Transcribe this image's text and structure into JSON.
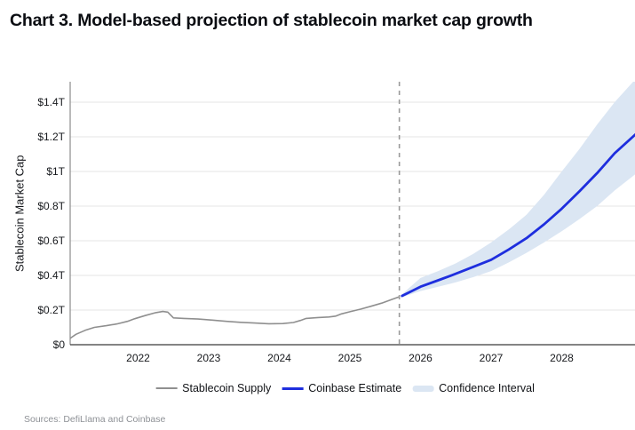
{
  "page": {
    "title": "Chart 3. Model-based projection of stablecoin market cap growth",
    "sources": "Sources: DefiLlama and Coinbase"
  },
  "chart_data": {
    "type": "line",
    "title": "Chart 3. Model-based projection of stablecoin market cap growth",
    "ylabel": "Stablecoin Market Cap",
    "xlabel": "",
    "x_ticks": [
      "2022",
      "2023",
      "2024",
      "2025",
      "2026",
      "2027",
      "2028"
    ],
    "x_tick_values": [
      2022,
      2023,
      2024,
      2025,
      2026,
      2027,
      2028
    ],
    "y_ticks": [
      {
        "value": 0,
        "label": "$0"
      },
      {
        "value": 0.2,
        "label": "$0.2T"
      },
      {
        "value": 0.4,
        "label": "$0.4T"
      },
      {
        "value": 0.6,
        "label": "$0.6T"
      },
      {
        "value": 0.8,
        "label": "$0.8T"
      },
      {
        "value": 1.0,
        "label": "$1T"
      },
      {
        "value": 1.2,
        "label": "$1.2T"
      },
      {
        "value": 1.4,
        "label": "$1.4T"
      }
    ],
    "x_range": [
      2021.03,
      2029.06
    ],
    "y_range": [
      0,
      1.52
    ],
    "grid": "horizontal",
    "legend_position": "bottom",
    "forecast_start_x": 2025.7,
    "colors": {
      "historical": "#8f8f8f",
      "estimate": "#1e2ede",
      "band": "#dbe6f3",
      "dashed": "#9a9a9a",
      "grid": "#e4e4e4",
      "axis_y": "#8c8c8c",
      "axis_x": "#3a3a3a"
    },
    "series": [
      {
        "name": "Stablecoin Supply",
        "type": "line",
        "color": "#8f8f8f",
        "points": [
          [
            2021.03,
            0.035
          ],
          [
            2021.12,
            0.06
          ],
          [
            2021.25,
            0.083
          ],
          [
            2021.38,
            0.1
          ],
          [
            2021.55,
            0.11
          ],
          [
            2021.7,
            0.12
          ],
          [
            2021.85,
            0.135
          ],
          [
            2021.95,
            0.15
          ],
          [
            2022.1,
            0.168
          ],
          [
            2022.25,
            0.185
          ],
          [
            2022.35,
            0.192
          ],
          [
            2022.42,
            0.188
          ],
          [
            2022.5,
            0.155
          ],
          [
            2022.65,
            0.152
          ],
          [
            2022.85,
            0.148
          ],
          [
            2023.05,
            0.142
          ],
          [
            2023.25,
            0.135
          ],
          [
            2023.45,
            0.129
          ],
          [
            2023.65,
            0.125
          ],
          [
            2023.85,
            0.121
          ],
          [
            2024.05,
            0.122
          ],
          [
            2024.2,
            0.128
          ],
          [
            2024.3,
            0.14
          ],
          [
            2024.38,
            0.152
          ],
          [
            2024.55,
            0.157
          ],
          [
            2024.7,
            0.16
          ],
          [
            2024.8,
            0.165
          ],
          [
            2024.88,
            0.178
          ],
          [
            2025.0,
            0.19
          ],
          [
            2025.15,
            0.205
          ],
          [
            2025.3,
            0.222
          ],
          [
            2025.45,
            0.24
          ],
          [
            2025.6,
            0.262
          ],
          [
            2025.7,
            0.277
          ]
        ]
      },
      {
        "name": "Coinbase Estimate",
        "type": "line",
        "color": "#1e2ede",
        "points": [
          [
            2025.74,
            0.282
          ],
          [
            2026.0,
            0.335
          ],
          [
            2026.25,
            0.372
          ],
          [
            2026.5,
            0.41
          ],
          [
            2026.75,
            0.45
          ],
          [
            2027.0,
            0.49
          ],
          [
            2027.25,
            0.55
          ],
          [
            2027.5,
            0.615
          ],
          [
            2027.75,
            0.695
          ],
          [
            2028.0,
            0.785
          ],
          [
            2028.25,
            0.885
          ],
          [
            2028.5,
            0.99
          ],
          [
            2028.75,
            1.105
          ],
          [
            2029.06,
            1.22
          ]
        ]
      },
      {
        "name": "Confidence Interval",
        "type": "band",
        "color": "#dbe6f3",
        "upper": [
          [
            2025.72,
            0.285
          ],
          [
            2026.0,
            0.385
          ],
          [
            2026.25,
            0.425
          ],
          [
            2026.5,
            0.47
          ],
          [
            2026.75,
            0.525
          ],
          [
            2027.0,
            0.59
          ],
          [
            2027.25,
            0.665
          ],
          [
            2027.5,
            0.75
          ],
          [
            2027.75,
            0.865
          ],
          [
            2028.0,
            1.0
          ],
          [
            2028.25,
            1.13
          ],
          [
            2028.5,
            1.27
          ],
          [
            2028.75,
            1.4
          ],
          [
            2029.06,
            1.54
          ]
        ],
        "lower": [
          [
            2025.72,
            0.272
          ],
          [
            2026.0,
            0.31
          ],
          [
            2026.25,
            0.335
          ],
          [
            2026.5,
            0.36
          ],
          [
            2026.75,
            0.39
          ],
          [
            2027.0,
            0.425
          ],
          [
            2027.25,
            0.475
          ],
          [
            2027.5,
            0.53
          ],
          [
            2027.75,
            0.59
          ],
          [
            2028.0,
            0.655
          ],
          [
            2028.25,
            0.725
          ],
          [
            2028.5,
            0.8
          ],
          [
            2028.75,
            0.89
          ],
          [
            2029.06,
            0.99
          ]
        ]
      }
    ]
  }
}
